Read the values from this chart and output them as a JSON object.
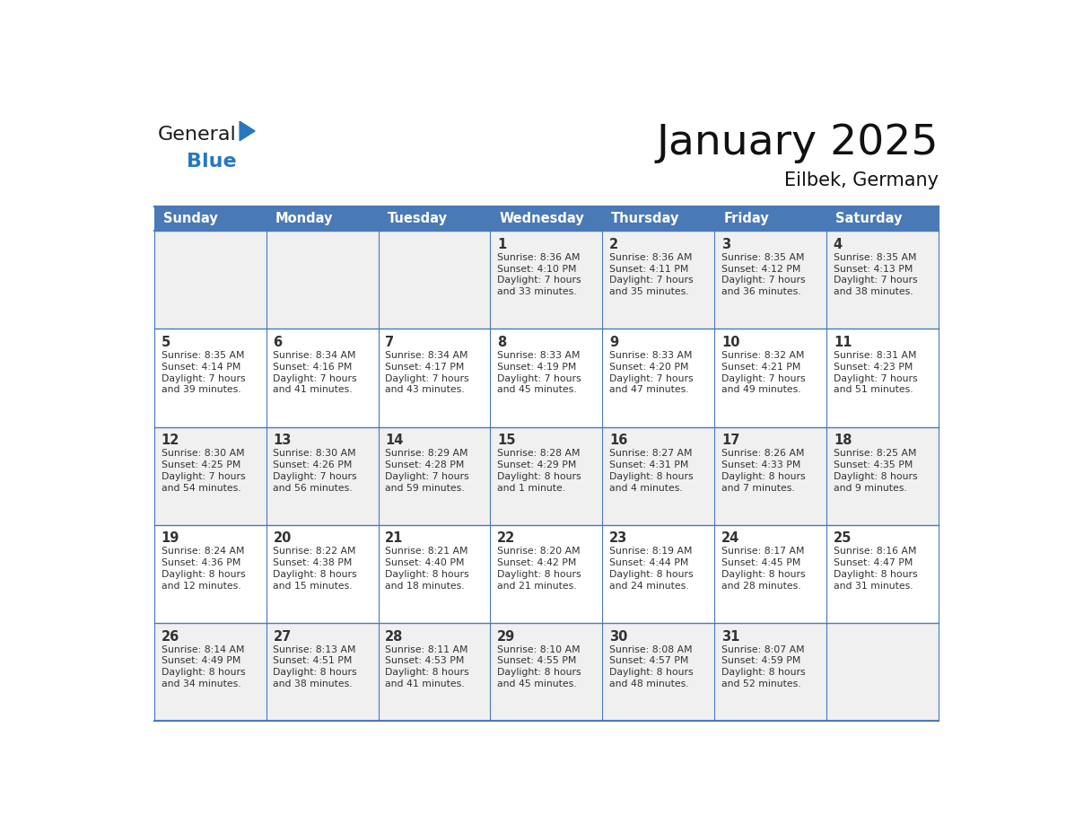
{
  "title": "January 2025",
  "subtitle": "Eilbek, Germany",
  "days_of_week": [
    "Sunday",
    "Monday",
    "Tuesday",
    "Wednesday",
    "Thursday",
    "Friday",
    "Saturday"
  ],
  "header_bg": "#4a7ab5",
  "header_text_color": "#ffffff",
  "cell_bg_light": "#f0f0f0",
  "cell_bg_white": "#ffffff",
  "day_number_color": "#333333",
  "cell_text_color": "#333333",
  "grid_color": "#4a7ab5",
  "weeks": [
    [
      {
        "day": null,
        "info": null
      },
      {
        "day": null,
        "info": null
      },
      {
        "day": null,
        "info": null
      },
      {
        "day": 1,
        "info": "Sunrise: 8:36 AM\nSunset: 4:10 PM\nDaylight: 7 hours\nand 33 minutes."
      },
      {
        "day": 2,
        "info": "Sunrise: 8:36 AM\nSunset: 4:11 PM\nDaylight: 7 hours\nand 35 minutes."
      },
      {
        "day": 3,
        "info": "Sunrise: 8:35 AM\nSunset: 4:12 PM\nDaylight: 7 hours\nand 36 minutes."
      },
      {
        "day": 4,
        "info": "Sunrise: 8:35 AM\nSunset: 4:13 PM\nDaylight: 7 hours\nand 38 minutes."
      }
    ],
    [
      {
        "day": 5,
        "info": "Sunrise: 8:35 AM\nSunset: 4:14 PM\nDaylight: 7 hours\nand 39 minutes."
      },
      {
        "day": 6,
        "info": "Sunrise: 8:34 AM\nSunset: 4:16 PM\nDaylight: 7 hours\nand 41 minutes."
      },
      {
        "day": 7,
        "info": "Sunrise: 8:34 AM\nSunset: 4:17 PM\nDaylight: 7 hours\nand 43 minutes."
      },
      {
        "day": 8,
        "info": "Sunrise: 8:33 AM\nSunset: 4:19 PM\nDaylight: 7 hours\nand 45 minutes."
      },
      {
        "day": 9,
        "info": "Sunrise: 8:33 AM\nSunset: 4:20 PM\nDaylight: 7 hours\nand 47 minutes."
      },
      {
        "day": 10,
        "info": "Sunrise: 8:32 AM\nSunset: 4:21 PM\nDaylight: 7 hours\nand 49 minutes."
      },
      {
        "day": 11,
        "info": "Sunrise: 8:31 AM\nSunset: 4:23 PM\nDaylight: 7 hours\nand 51 minutes."
      }
    ],
    [
      {
        "day": 12,
        "info": "Sunrise: 8:30 AM\nSunset: 4:25 PM\nDaylight: 7 hours\nand 54 minutes."
      },
      {
        "day": 13,
        "info": "Sunrise: 8:30 AM\nSunset: 4:26 PM\nDaylight: 7 hours\nand 56 minutes."
      },
      {
        "day": 14,
        "info": "Sunrise: 8:29 AM\nSunset: 4:28 PM\nDaylight: 7 hours\nand 59 minutes."
      },
      {
        "day": 15,
        "info": "Sunrise: 8:28 AM\nSunset: 4:29 PM\nDaylight: 8 hours\nand 1 minute."
      },
      {
        "day": 16,
        "info": "Sunrise: 8:27 AM\nSunset: 4:31 PM\nDaylight: 8 hours\nand 4 minutes."
      },
      {
        "day": 17,
        "info": "Sunrise: 8:26 AM\nSunset: 4:33 PM\nDaylight: 8 hours\nand 7 minutes."
      },
      {
        "day": 18,
        "info": "Sunrise: 8:25 AM\nSunset: 4:35 PM\nDaylight: 8 hours\nand 9 minutes."
      }
    ],
    [
      {
        "day": 19,
        "info": "Sunrise: 8:24 AM\nSunset: 4:36 PM\nDaylight: 8 hours\nand 12 minutes."
      },
      {
        "day": 20,
        "info": "Sunrise: 8:22 AM\nSunset: 4:38 PM\nDaylight: 8 hours\nand 15 minutes."
      },
      {
        "day": 21,
        "info": "Sunrise: 8:21 AM\nSunset: 4:40 PM\nDaylight: 8 hours\nand 18 minutes."
      },
      {
        "day": 22,
        "info": "Sunrise: 8:20 AM\nSunset: 4:42 PM\nDaylight: 8 hours\nand 21 minutes."
      },
      {
        "day": 23,
        "info": "Sunrise: 8:19 AM\nSunset: 4:44 PM\nDaylight: 8 hours\nand 24 minutes."
      },
      {
        "day": 24,
        "info": "Sunrise: 8:17 AM\nSunset: 4:45 PM\nDaylight: 8 hours\nand 28 minutes."
      },
      {
        "day": 25,
        "info": "Sunrise: 8:16 AM\nSunset: 4:47 PM\nDaylight: 8 hours\nand 31 minutes."
      }
    ],
    [
      {
        "day": 26,
        "info": "Sunrise: 8:14 AM\nSunset: 4:49 PM\nDaylight: 8 hours\nand 34 minutes."
      },
      {
        "day": 27,
        "info": "Sunrise: 8:13 AM\nSunset: 4:51 PM\nDaylight: 8 hours\nand 38 minutes."
      },
      {
        "day": 28,
        "info": "Sunrise: 8:11 AM\nSunset: 4:53 PM\nDaylight: 8 hours\nand 41 minutes."
      },
      {
        "day": 29,
        "info": "Sunrise: 8:10 AM\nSunset: 4:55 PM\nDaylight: 8 hours\nand 45 minutes."
      },
      {
        "day": 30,
        "info": "Sunrise: 8:08 AM\nSunset: 4:57 PM\nDaylight: 8 hours\nand 48 minutes."
      },
      {
        "day": 31,
        "info": "Sunrise: 8:07 AM\nSunset: 4:59 PM\nDaylight: 8 hours\nand 52 minutes."
      },
      {
        "day": null,
        "info": null
      }
    ]
  ],
  "logo_general_color": "#1a1a1a",
  "logo_blue_color": "#2878c0",
  "logo_triangle_color": "#2878c0",
  "fig_width": 11.88,
  "fig_height": 9.18,
  "dpi": 100
}
